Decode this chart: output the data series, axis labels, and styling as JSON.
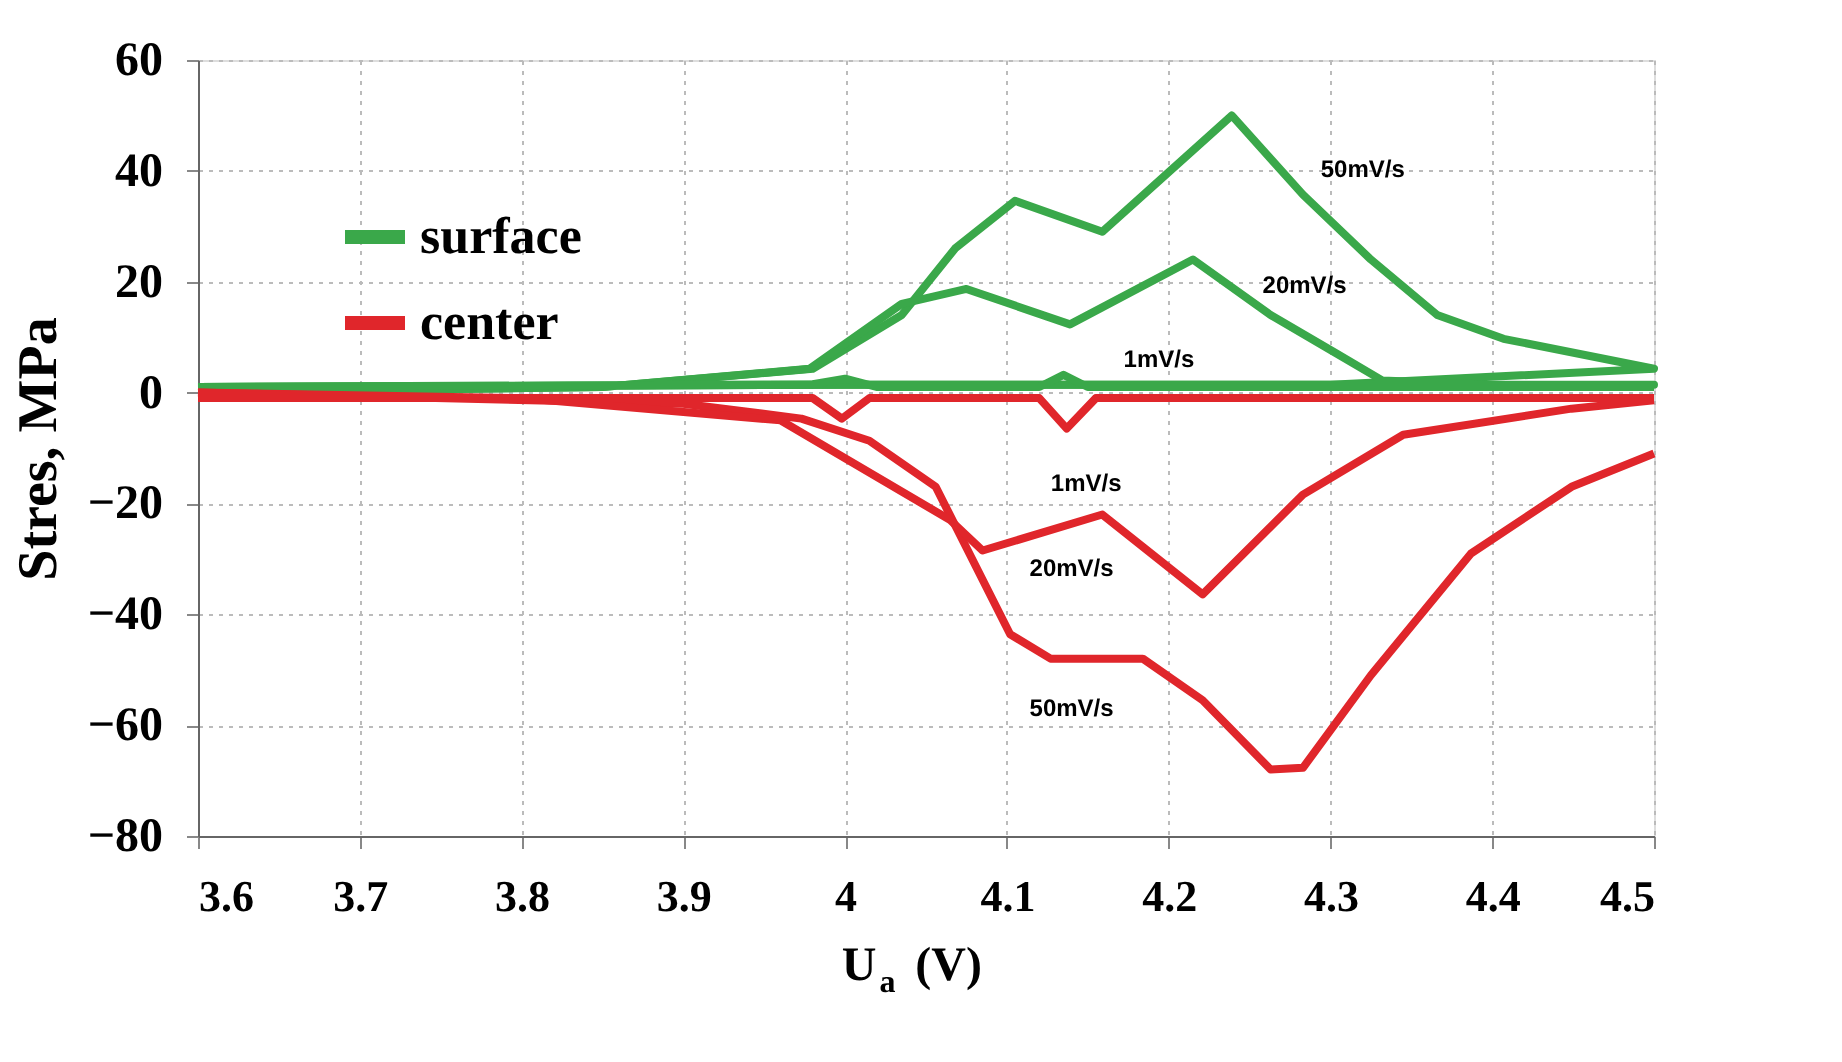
{
  "chart_data": {
    "type": "line",
    "xlabel": "U$_{a}$ (V)",
    "ylabel": "Stres, MPa",
    "xlim": [
      3.6,
      4.5
    ],
    "ylim": [
      -80,
      60
    ],
    "xticks": [
      3.6,
      3.7,
      3.8,
      3.9,
      4,
      4.1,
      4.2,
      4.3,
      4.4,
      4.5
    ],
    "yticks": [
      -80,
      -60,
      -40,
      -20,
      0,
      20,
      40,
      60
    ],
    "grid": true,
    "legend": "top left",
    "marker": "none",
    "line_style": "solid",
    "series": [
      {
        "name": "surface",
        "color": "#3aa84a",
        "x": [
          3.6,
          3.85,
          3.98,
          4.035,
          4.068,
          4.105,
          4.159,
          4.239,
          4.283,
          4.325,
          4.366,
          4.407,
          4.5,
          4.3,
          4.0,
          3.6
        ],
        "values": [
          0,
          1,
          4.3,
          14,
          26,
          34.6,
          29,
          50,
          35.7,
          24,
          14,
          9.7,
          4.3,
          1.4,
          1.4,
          1
        ]
      },
      {
        "color": "#3aa84a",
        "x": [
          3.6,
          3.85,
          3.978,
          4.035,
          4.075,
          4.139,
          4.215,
          4.263,
          4.304,
          4.332,
          4.4,
          4.5,
          4.3,
          4.0,
          3.6
        ],
        "values": [
          0,
          1,
          4.3,
          16,
          18.7,
          12.3,
          24,
          14,
          7,
          2.2,
          1.4,
          1.4,
          1.4,
          1.4,
          1
        ]
      },
      {
        "color": "#3aa84a",
        "x": [
          3.6,
          3.98,
          4.0,
          4.02,
          4.12,
          4.135,
          4.15,
          4.5
        ],
        "values": [
          1,
          1.5,
          2.5,
          1,
          1,
          3.2,
          1,
          1
        ]
      },
      {
        "name": "center",
        "color": "#e0262b",
        "x": [
          3.6,
          3.9,
          3.973,
          4.015,
          4.056,
          4.102,
          4.127,
          4.184,
          4.221,
          4.263,
          4.283,
          4.325,
          4.387,
          4.449,
          4.5
        ],
        "values": [
          0,
          -2,
          -4.7,
          -8.7,
          -17,
          -43.6,
          -48,
          -48,
          -55.5,
          -68,
          -67.7,
          -51,
          -29,
          -17,
          -11
        ]
      },
      {
        "color": "#e0262b",
        "x": [
          3.6,
          3.8,
          3.96,
          4.065,
          4.085,
          4.159,
          4.221,
          4.283,
          4.345,
          4.449,
          4.5
        ],
        "values": [
          0,
          -1,
          -5,
          -23,
          -28.5,
          -22,
          -36.4,
          -18.4,
          -7.6,
          -2.9,
          -1.4
        ]
      },
      {
        "color": "#e0262b",
        "x": [
          3.6,
          3.98,
          3.998,
          4.015,
          4.12,
          4.137,
          4.155,
          4.5
        ],
        "values": [
          -1,
          -1,
          -4.7,
          -1,
          -1,
          -6.5,
          -1,
          -1
        ]
      }
    ],
    "annotations": [
      "50mV/s",
      "20mV/s",
      "1mV/s",
      "1mV/s",
      "20mV/s",
      "50mV/s"
    ]
  }
}
